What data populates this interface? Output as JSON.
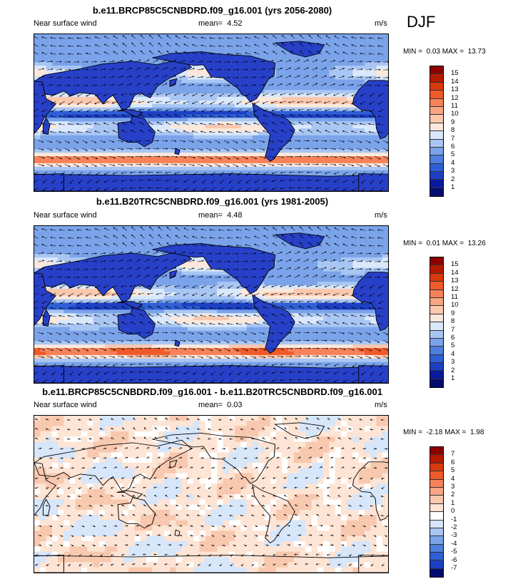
{
  "season": "DJF",
  "panels": [
    {
      "title": "b.e11.BRCP85C5CNBDRD.f09_g16.001 (yrs 2056-2080)",
      "variable": "Near surface wind",
      "mean_label": "mean=",
      "mean": "4.52",
      "units": "m/s",
      "min_label": "MIN =",
      "min": "0.03",
      "max_label": "MAX =",
      "max": "13.73",
      "palette": "wind",
      "levels": [
        "15",
        "14",
        "13",
        "12",
        "11",
        "10",
        "9",
        "8",
        "7",
        "6",
        "5",
        "4",
        "3",
        "2",
        "1"
      ]
    },
    {
      "title": "b.e11.B20TRC5CNBDRD.f09_g16.001 (yrs 1981-2005)",
      "variable": "Near surface wind",
      "mean_label": "mean=",
      "mean": "4.48",
      "units": "m/s",
      "min_label": "MIN =",
      "min": "0.01",
      "max_label": "MAX =",
      "max": "13.26",
      "palette": "wind",
      "levels": [
        "15",
        "14",
        "13",
        "12",
        "11",
        "10",
        "9",
        "8",
        "7",
        "6",
        "5",
        "4",
        "3",
        "2",
        "1"
      ]
    },
    {
      "title": "b.e11.BRCP85C5CNBDRD.f09_g16.001 - b.e11.B20TRC5CNBDRD.f09_g16.001",
      "variable": "Near surface wind",
      "mean_label": "mean=",
      "mean": "0.03",
      "units": "m/s",
      "min_label": "MIN =",
      "min": "-2.18",
      "max_label": "MAX =",
      "max": "1.98",
      "palette": "diff",
      "levels": [
        "7",
        "6",
        "5",
        "4",
        "3",
        "2",
        "1",
        "0",
        "-1",
        "-2",
        "-3",
        "-4",
        "-5",
        "-6",
        "-7"
      ]
    }
  ],
  "colors": {
    "wind": [
      "#8c0000",
      "#b51a00",
      "#d83a10",
      "#ef5a2a",
      "#f6825a",
      "#f8a583",
      "#fbc8ae",
      "#fbe8dc",
      "#d9e8fb",
      "#a9c6f3",
      "#7aa3ea",
      "#4e7fe0",
      "#2f5fd6",
      "#1c40c4",
      "#0a1a9e",
      "#050c70"
    ],
    "diff": [
      "#8c0000",
      "#b51a00",
      "#d83a10",
      "#ef5a2a",
      "#f6825a",
      "#f8a583",
      "#fbc8ae",
      "#fde4d4",
      "#ffffff",
      "#d6e6fb",
      "#a9c6f3",
      "#7aa3ea",
      "#4e7fe0",
      "#2f5fd6",
      "#1c40c4",
      "#050c70"
    ]
  }
}
